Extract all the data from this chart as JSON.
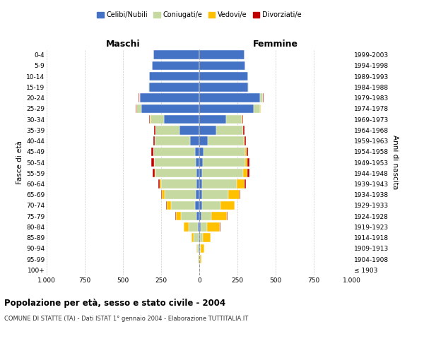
{
  "age_groups": [
    "100+",
    "95-99",
    "90-94",
    "85-89",
    "80-84",
    "75-79",
    "70-74",
    "65-69",
    "60-64",
    "55-59",
    "50-54",
    "45-49",
    "40-44",
    "35-39",
    "30-34",
    "25-29",
    "20-24",
    "15-19",
    "10-14",
    "5-9",
    "0-4"
  ],
  "birth_years": [
    "≤ 1903",
    "1904-1908",
    "1909-1913",
    "1914-1918",
    "1919-1923",
    "1924-1928",
    "1929-1933",
    "1934-1938",
    "1939-1943",
    "1944-1948",
    "1949-1953",
    "1954-1958",
    "1959-1963",
    "1964-1968",
    "1969-1973",
    "1974-1978",
    "1979-1983",
    "1984-1988",
    "1989-1993",
    "1994-1998",
    "1999-2003"
  ],
  "males": {
    "celibi": [
      0,
      2,
      3,
      5,
      10,
      20,
      30,
      25,
      20,
      20,
      25,
      30,
      60,
      130,
      230,
      380,
      390,
      330,
      330,
      310,
      300
    ],
    "coniugati": [
      0,
      5,
      10,
      30,
      60,
      100,
      155,
      200,
      230,
      265,
      270,
      270,
      230,
      155,
      90,
      30,
      5,
      5,
      0,
      0,
      0
    ],
    "vedovi": [
      0,
      2,
      5,
      15,
      30,
      35,
      30,
      20,
      10,
      5,
      3,
      2,
      2,
      2,
      2,
      2,
      0,
      0,
      0,
      0,
      0
    ],
    "divorziati": [
      0,
      0,
      0,
      0,
      2,
      3,
      3,
      5,
      10,
      15,
      15,
      12,
      10,
      8,
      5,
      3,
      2,
      0,
      0,
      0,
      0
    ]
  },
  "females": {
    "nubili": [
      0,
      2,
      3,
      5,
      10,
      15,
      20,
      20,
      20,
      20,
      25,
      30,
      55,
      110,
      175,
      355,
      400,
      320,
      320,
      300,
      295
    ],
    "coniugate": [
      0,
      3,
      8,
      20,
      40,
      65,
      120,
      170,
      225,
      265,
      275,
      270,
      235,
      175,
      105,
      45,
      15,
      5,
      0,
      0,
      0
    ],
    "vedove": [
      2,
      8,
      20,
      50,
      85,
      100,
      90,
      75,
      50,
      30,
      15,
      8,
      5,
      3,
      2,
      2,
      2,
      0,
      0,
      0,
      0
    ],
    "divorziate": [
      0,
      0,
      0,
      0,
      2,
      3,
      3,
      5,
      10,
      15,
      15,
      12,
      10,
      8,
      5,
      3,
      2,
      0,
      0,
      0,
      0
    ]
  },
  "colors": {
    "celibi": "#4472c4",
    "coniugati": "#c5d9a0",
    "vedovi": "#ffc000",
    "divorziati": "#c00000"
  },
  "title_main": "Popolazione per età, sesso e stato civile - 2004",
  "title_sub": "COMUNE DI STATTE (TA) - Dati ISTAT 1° gennaio 2004 - Elaborazione TUTTITALIA.IT",
  "xlabel_left": "Maschi",
  "xlabel_right": "Femmine",
  "ylabel_left": "Fasce di età",
  "ylabel_right": "Anni di nascita",
  "legend_labels": [
    "Celibi/Nubili",
    "Coniugati/e",
    "Vedovi/e",
    "Divorziati/e"
  ],
  "xlim": 1000,
  "background_color": "#ffffff",
  "grid_color": "#cccccc"
}
